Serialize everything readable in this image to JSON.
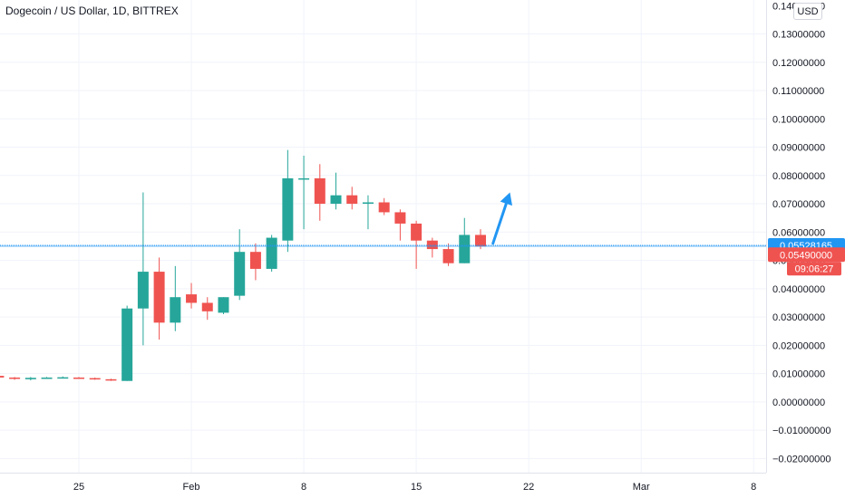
{
  "header": {
    "title": "Dogecoin / US Dollar, 1D, BITTREX",
    "currency": "USD"
  },
  "colors": {
    "up": "#26a69a",
    "down": "#ef5350",
    "current_line": "#2196f3",
    "grid": "#f0f3fa",
    "arrow": "#2196f3"
  },
  "chart_data": {
    "type": "candlestick",
    "ylim": [
      -0.025,
      0.142
    ],
    "y_ticks": [
      "0.13000000",
      "0.12000000",
      "0.11000000",
      "0.10000000",
      "0.09000000",
      "0.08000000",
      "0.07000000",
      "0.06000000",
      "0.05000000",
      "0.04000000",
      "0.03000000",
      "0.02000000",
      "0.01000000",
      "0.00000000",
      "−0.01000000",
      "−0.02000000"
    ],
    "y_tick_values": [
      0.13,
      0.12,
      0.11,
      0.1,
      0.09,
      0.08,
      0.07,
      0.06,
      0.05,
      0.04,
      0.03,
      0.02,
      0.01,
      0.0,
      -0.01,
      -0.02
    ],
    "x_labels": [
      {
        "label": "25",
        "day": "2021-01-25"
      },
      {
        "label": "Feb",
        "day": "2021-02-01"
      },
      {
        "label": "8",
        "day": "2021-02-08"
      },
      {
        "label": "15",
        "day": "2021-02-15"
      },
      {
        "label": "22",
        "day": "2021-02-22"
      },
      {
        "label": "Mar",
        "day": "2021-03-01"
      },
      {
        "label": "8",
        "day": "2021-03-08"
      }
    ],
    "candles": [
      {
        "date": "2021-01-20",
        "o": 0.0092,
        "h": 0.0092,
        "l": 0.0085,
        "c": 0.0086
      },
      {
        "date": "2021-01-21",
        "o": 0.0086,
        "h": 0.0088,
        "l": 0.0078,
        "c": 0.0082
      },
      {
        "date": "2021-01-22",
        "o": 0.008,
        "h": 0.0088,
        "l": 0.0076,
        "c": 0.0085
      },
      {
        "date": "2021-01-23",
        "o": 0.0084,
        "h": 0.0088,
        "l": 0.0082,
        "c": 0.0086
      },
      {
        "date": "2021-01-24",
        "o": 0.0086,
        "h": 0.009,
        "l": 0.0084,
        "c": 0.0087
      },
      {
        "date": "2021-01-25",
        "o": 0.0086,
        "h": 0.0088,
        "l": 0.0082,
        "c": 0.0084
      },
      {
        "date": "2021-01-26",
        "o": 0.0084,
        "h": 0.0086,
        "l": 0.0078,
        "c": 0.008
      },
      {
        "date": "2021-01-27",
        "o": 0.008,
        "h": 0.0082,
        "l": 0.0074,
        "c": 0.0076
      },
      {
        "date": "2021-01-28",
        "o": 0.0074,
        "h": 0.034,
        "l": 0.0074,
        "c": 0.033
      },
      {
        "date": "2021-01-29",
        "o": 0.033,
        "h": 0.074,
        "l": 0.02,
        "c": 0.046
      },
      {
        "date": "2021-01-30",
        "o": 0.046,
        "h": 0.051,
        "l": 0.022,
        "c": 0.028
      },
      {
        "date": "2021-01-31",
        "o": 0.028,
        "h": 0.048,
        "l": 0.025,
        "c": 0.037
      },
      {
        "date": "2021-02-01",
        "o": 0.038,
        "h": 0.042,
        "l": 0.033,
        "c": 0.035
      },
      {
        "date": "2021-02-02",
        "o": 0.035,
        "h": 0.037,
        "l": 0.029,
        "c": 0.032
      },
      {
        "date": "2021-02-03",
        "o": 0.0315,
        "h": 0.037,
        "l": 0.031,
        "c": 0.037
      },
      {
        "date": "2021-02-04",
        "o": 0.0375,
        "h": 0.061,
        "l": 0.036,
        "c": 0.053
      },
      {
        "date": "2021-02-05",
        "o": 0.053,
        "h": 0.056,
        "l": 0.043,
        "c": 0.047
      },
      {
        "date": "2021-02-06",
        "o": 0.047,
        "h": 0.059,
        "l": 0.046,
        "c": 0.058
      },
      {
        "date": "2021-02-07",
        "o": 0.057,
        "h": 0.089,
        "l": 0.053,
        "c": 0.079
      },
      {
        "date": "2021-02-08",
        "o": 0.079,
        "h": 0.087,
        "l": 0.061,
        "c": 0.079
      },
      {
        "date": "2021-02-09",
        "o": 0.079,
        "h": 0.084,
        "l": 0.064,
        "c": 0.07
      },
      {
        "date": "2021-02-10",
        "o": 0.07,
        "h": 0.081,
        "l": 0.068,
        "c": 0.073
      },
      {
        "date": "2021-02-11",
        "o": 0.073,
        "h": 0.076,
        "l": 0.068,
        "c": 0.07
      },
      {
        "date": "2021-02-12",
        "o": 0.07,
        "h": 0.073,
        "l": 0.061,
        "c": 0.0705
      },
      {
        "date": "2021-02-13",
        "o": 0.0705,
        "h": 0.072,
        "l": 0.066,
        "c": 0.067
      },
      {
        "date": "2021-02-14",
        "o": 0.067,
        "h": 0.068,
        "l": 0.057,
        "c": 0.063
      },
      {
        "date": "2021-02-15",
        "o": 0.063,
        "h": 0.064,
        "l": 0.047,
        "c": 0.057
      },
      {
        "date": "2021-02-16",
        "o": 0.057,
        "h": 0.058,
        "l": 0.051,
        "c": 0.054
      },
      {
        "date": "2021-02-17",
        "o": 0.054,
        "h": 0.056,
        "l": 0.048,
        "c": 0.049
      },
      {
        "date": "2021-02-18",
        "o": 0.049,
        "h": 0.065,
        "l": 0.049,
        "c": 0.059
      },
      {
        "date": "2021-02-19",
        "o": 0.059,
        "h": 0.061,
        "l": 0.054,
        "c": 0.0549
      }
    ],
    "current_price": "0.05528165",
    "current_price_value": 0.05528165,
    "last_close_label": "0.05490000",
    "countdown": "09:06:27",
    "arrow_annotation": {
      "from_date": "2021-02-20",
      "from_value": 0.056,
      "to_date": "2021-02-21",
      "to_value": 0.074
    }
  }
}
